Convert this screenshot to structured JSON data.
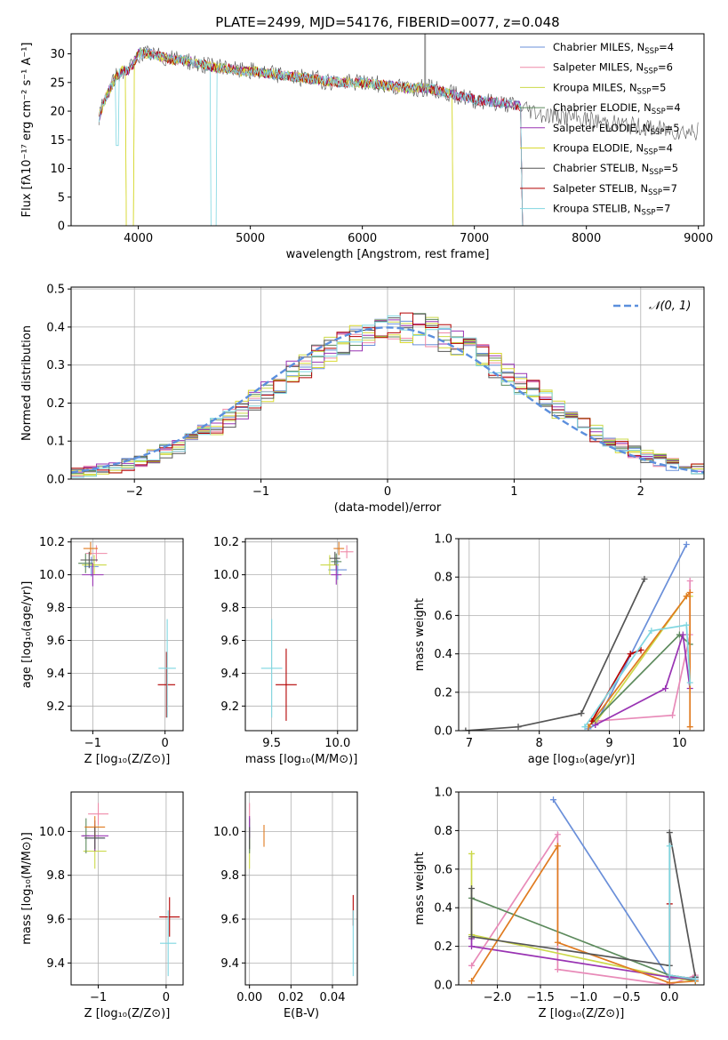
{
  "colors": [
    "#6a8fd9",
    "#ef8aa8",
    "#ccd94a",
    "#5c8a5c",
    "#9933b3",
    "#d9d930",
    "#555555",
    "#b30000",
    "#7fd6e0"
  ],
  "hist_colors": [
    "#6a8fd9",
    "#ef8aa8",
    "#ccd94a",
    "#5c8a5c",
    "#9933b3",
    "#d9d930",
    "#555555",
    "#b30000",
    "#7fd6e0"
  ],
  "errbar_colors": [
    "#6a8fd9",
    "#ef8aa8",
    "#ccd94a",
    "#5c8a5c",
    "#9933b3",
    "#e07b20",
    "#555555",
    "#b30000",
    "#7fd6e0"
  ],
  "weight_colors": [
    "#6a8fd9",
    "#e88ab8",
    "#ccd94a",
    "#5c8a5c",
    "#9933b3",
    "#e07b20",
    "#555555",
    "#b30000",
    "#7fd6e0"
  ],
  "chart_data": [
    {
      "type": "line",
      "title": "PLATE=2499, MJD=54176, FIBERID=0077, z=0.048",
      "xlabel": "wavelength [Angstrom, rest frame]",
      "ylabel": "Flux [fλ10⁻¹⁷ erg cm⁻² s⁻¹ A⁻¹]",
      "xlim": [
        3400,
        9050
      ],
      "ylim": [
        0,
        33.5
      ],
      "xticks": [
        4000,
        5000,
        6000,
        7000,
        8000,
        9000
      ],
      "yticks": [
        0,
        5,
        10,
        15,
        20,
        25,
        30
      ],
      "legend_position": "top-right",
      "spectrum_points": {
        "x": [
          3650,
          3700,
          3750,
          3800,
          3850,
          3900,
          3950,
          4000,
          4100,
          4200,
          4300,
          4400,
          4500,
          4600,
          4700,
          4800,
          4900,
          5000,
          5200,
          5400,
          5600,
          5800,
          6000,
          6200,
          6400,
          6600,
          6800,
          7000,
          7200,
          7400,
          7600,
          7800,
          8000,
          8200,
          8400,
          8600,
          8800,
          9000
        ],
        "y": [
          19,
          22,
          24,
          26,
          27,
          27,
          28,
          30,
          30,
          29.5,
          29,
          29,
          28.5,
          28,
          27.5,
          27.5,
          27,
          27,
          26.5,
          26,
          25.5,
          25,
          25,
          24.5,
          24,
          24,
          23,
          22,
          21.5,
          21,
          19.5,
          19,
          18.5,
          18,
          17.5,
          17,
          16.5,
          16.5
        ]
      },
      "series": [
        {
          "name": "Chabrier MILES, N",
          "sub": "SSP",
          "suffix": "=4"
        },
        {
          "name": "Salpeter MILES, N",
          "sub": "SSP",
          "suffix": "=6"
        },
        {
          "name": "Kroupa MILES, N",
          "sub": "SSP",
          "suffix": "=5"
        },
        {
          "name": "Chabrier ELODIE, N",
          "sub": "SSP",
          "suffix": "=4"
        },
        {
          "name": "Salpeter ELODIE, N",
          "sub": "SSP",
          "suffix": "=5"
        },
        {
          "name": "Kroupa ELODIE, N",
          "sub": "SSP",
          "suffix": "=4"
        },
        {
          "name": "Chabrier STELIB, N",
          "sub": "SSP",
          "suffix": "=5"
        },
        {
          "name": "Salpeter STELIB, N",
          "sub": "SSP",
          "suffix": "=7"
        },
        {
          "name": "Kroupa STELIB, N",
          "sub": "SSP",
          "suffix": "=7"
        }
      ]
    },
    {
      "type": "histogram",
      "xlabel": "(data-model)/error",
      "ylabel": "Normed distribution",
      "xlim": [
        -2.5,
        2.5
      ],
      "ylim": [
        0,
        0.505
      ],
      "xticks": [
        -2,
        -1,
        0,
        1,
        2
      ],
      "yticks": [
        0.0,
        0.1,
        0.2,
        0.3,
        0.4,
        0.5
      ],
      "legend_label": "𝒩(0, 1)",
      "legend_position": "top-right",
      "bin_width": 0.1,
      "bins_start": -2.5,
      "reference_density": "normal(0,1)"
    },
    {
      "type": "scatter",
      "xlabel": "Z [log₁₀(Z/Z⊙)]",
      "ylabel": "age  [log₁₀(age/yr)]",
      "xlim": [
        -1.3,
        0.25
      ],
      "ylim": [
        9.05,
        10.22
      ],
      "xticks": [
        -1,
        0
      ],
      "yticks": [
        9.2,
        9.4,
        9.6,
        9.8,
        10.0,
        10.2
      ],
      "points": [
        {
          "x": -1.02,
          "y": 10.05,
          "xerr": 0.1,
          "yerr": 0.06
        },
        {
          "x": -0.95,
          "y": 10.13,
          "xerr": 0.15,
          "yerr": 0.05
        },
        {
          "x": -0.98,
          "y": 10.06,
          "xerr": 0.17,
          "yerr": 0.06
        },
        {
          "x": -1.1,
          "y": 10.07,
          "xerr": 0.1,
          "yerr": 0.06
        },
        {
          "x": -1.0,
          "y": 10.0,
          "xerr": 0.15,
          "yerr": 0.07
        },
        {
          "x": -1.03,
          "y": 10.16,
          "xerr": 0.1,
          "yerr": 0.04
        },
        {
          "x": -1.05,
          "y": 10.09,
          "xerr": 0.12,
          "yerr": 0.05
        },
        {
          "x": 0.02,
          "y": 9.33,
          "xerr": 0.12,
          "yerr": 0.2
        },
        {
          "x": 0.03,
          "y": 9.43,
          "xerr": 0.12,
          "yerr": 0.3
        }
      ]
    },
    {
      "type": "scatter",
      "xlabel": "mass [log₁₀(M/M⊙)]",
      "ylabel": "",
      "xlim": [
        9.3,
        10.15
      ],
      "ylim": [
        9.05,
        10.22
      ],
      "xticks": [
        9.5,
        10.0
      ],
      "yticks": [
        9.2,
        9.4,
        9.6,
        9.8,
        10.0,
        10.2
      ],
      "points": [
        {
          "x": 10.0,
          "y": 10.03,
          "xerr": 0.07,
          "yerr": 0.06
        },
        {
          "x": 10.07,
          "y": 10.14,
          "xerr": 0.05,
          "yerr": 0.04
        },
        {
          "x": 9.94,
          "y": 10.06,
          "xerr": 0.07,
          "yerr": 0.06
        },
        {
          "x": 9.99,
          "y": 10.08,
          "xerr": 0.04,
          "yerr": 0.05
        },
        {
          "x": 9.99,
          "y": 10.0,
          "xerr": 0.04,
          "yerr": 0.06
        },
        {
          "x": 10.01,
          "y": 10.16,
          "xerr": 0.04,
          "yerr": 0.04
        },
        {
          "x": 9.98,
          "y": 10.1,
          "xerr": 0.04,
          "yerr": 0.04
        },
        {
          "x": 9.61,
          "y": 9.33,
          "xerr": 0.08,
          "yerr": 0.22
        },
        {
          "x": 9.5,
          "y": 9.43,
          "xerr": 0.08,
          "yerr": 0.3
        }
      ]
    },
    {
      "type": "line",
      "xlabel": "age  [log₁₀(age/yr)]",
      "ylabel": "mass weight",
      "xlim": [
        6.85,
        10.35
      ],
      "ylim": [
        0,
        1.0
      ],
      "xticks": [
        7,
        8,
        9,
        10
      ],
      "yticks": [
        0.0,
        0.2,
        0.4,
        0.6,
        0.8,
        1.0
      ],
      "series": [
        {
          "x": [
            8.7,
            8.8,
            10.1
          ],
          "y": [
            0.01,
            0.03,
            0.97
          ]
        },
        {
          "x": [
            8.8,
            9.9,
            10.15,
            10.15
          ],
          "y": [
            0.05,
            0.08,
            0.5,
            0.78
          ]
        },
        {
          "x": [
            8.8,
            10.1,
            10.15
          ],
          "y": [
            0.04,
            0.7,
            0.7
          ]
        },
        {
          "x": [
            8.7,
            10.0,
            10.15
          ],
          "y": [
            0.02,
            0.5,
            0.45
          ]
        },
        {
          "x": [
            8.8,
            9.8,
            10.05,
            10.15
          ],
          "y": [
            0.03,
            0.22,
            0.5,
            0.22
          ]
        },
        {
          "x": [
            8.7,
            10.1,
            10.15,
            10.15
          ],
          "y": [
            0.02,
            0.7,
            0.72,
            0.02
          ]
        },
        {
          "x": [
            6.95,
            7.7,
            8.6,
            9.5
          ],
          "y": [
            0.0,
            0.02,
            0.09,
            0.79
          ]
        },
        {
          "x": [
            8.75,
            9.3,
            9.45
          ],
          "y": [
            0.05,
            0.4,
            0.42
          ]
        },
        {
          "x": [
            8.65,
            9.6,
            10.1,
            10.15
          ],
          "y": [
            0.02,
            0.52,
            0.55,
            0.25
          ]
        }
      ]
    },
    {
      "type": "scatter",
      "xlabel": "Z [log₁₀(Z/Z⊙)]",
      "ylabel": "mass [log₁₀(M/M⊙)]",
      "xlim": [
        -1.4,
        0.25
      ],
      "ylim": [
        9.3,
        10.18
      ],
      "xticks": [
        -1,
        0
      ],
      "yticks": [
        9.4,
        9.6,
        9.8,
        10.0
      ],
      "points": [
        {
          "x": -1.05,
          "y": 9.97,
          "xerr": 0.15,
          "yerr": 0.06
        },
        {
          "x": -1.0,
          "y": 10.08,
          "xerr": 0.15,
          "yerr": 0.05
        },
        {
          "x": -1.05,
          "y": 9.91,
          "xerr": 0.17,
          "yerr": 0.08
        },
        {
          "x": -1.18,
          "y": 9.98,
          "xerr": 0.05,
          "yerr": 0.08
        },
        {
          "x": -1.05,
          "y": 9.98,
          "xerr": 0.2,
          "yerr": 0.07
        },
        {
          "x": -1.05,
          "y": 10.02,
          "xerr": 0.15,
          "yerr": 0.05
        },
        {
          "x": -1.05,
          "y": 9.97,
          "xerr": 0.15,
          "yerr": 0.05
        },
        {
          "x": 0.05,
          "y": 9.61,
          "xerr": 0.15,
          "yerr": 0.09
        },
        {
          "x": 0.03,
          "y": 9.49,
          "xerr": 0.12,
          "yerr": 0.15
        }
      ]
    },
    {
      "type": "scatter",
      "xlabel": "E(B-V)",
      "ylabel": "",
      "xlim": [
        -0.002,
        0.052
      ],
      "ylim": [
        9.3,
        10.18
      ],
      "xticks": [
        0.0,
        0.02,
        0.04
      ],
      "yticks": [
        9.4,
        9.6,
        9.8,
        10.0
      ],
      "points": [
        {
          "x": 0.0,
          "y": 9.97,
          "xerr": 0.0,
          "yerr": 0.06
        },
        {
          "x": 0.0,
          "y": 10.08,
          "xerr": 0.0,
          "yerr": 0.05
        },
        {
          "x": 0.0,
          "y": 9.91,
          "xerr": 0.0,
          "yerr": 0.08
        },
        {
          "x": 0.0,
          "y": 9.98,
          "xerr": 0.0,
          "yerr": 0.08
        },
        {
          "x": 0.0,
          "y": 10.02,
          "xerr": 0.0,
          "yerr": 0.05
        },
        {
          "x": 0.007,
          "y": 9.98,
          "xerr": 0.0,
          "yerr": 0.05
        },
        {
          "x": 0.0,
          "y": 9.97,
          "xerr": 0.0,
          "yerr": 0.05
        },
        {
          "x": 0.05,
          "y": 9.64,
          "xerr": 0.0,
          "yerr": 0.07
        },
        {
          "x": 0.05,
          "y": 9.49,
          "xerr": 0.0,
          "yerr": 0.15
        }
      ]
    },
    {
      "type": "line",
      "xlabel": "Z [log₁₀(Z/Z⊙)]",
      "ylabel": "mass weight",
      "xlim": [
        -2.45,
        0.4
      ],
      "ylim": [
        0,
        1.0
      ],
      "xticks": [
        -2.0,
        -1.5,
        -1.0,
        -0.5,
        0.0
      ],
      "yticks": [
        0.0,
        0.2,
        0.4,
        0.6,
        0.8,
        1.0
      ],
      "series": [
        {
          "x": [
            -1.35,
            0.0,
            0.3
          ],
          "y": [
            0.96,
            0.03,
            0.04
          ]
        },
        {
          "x": [
            -2.3,
            -1.3,
            -1.3,
            0.0,
            0.3
          ],
          "y": [
            0.1,
            0.78,
            0.08,
            0.0,
            0.05
          ]
        },
        {
          "x": [
            -2.3,
            -2.3,
            0.0,
            0.3
          ],
          "y": [
            0.68,
            0.26,
            0.04,
            0.02
          ]
        },
        {
          "x": [
            -2.3,
            0.0,
            0.3
          ],
          "y": [
            0.45,
            0.05,
            0.02
          ]
        },
        {
          "x": [
            -2.3,
            -2.3,
            0.0,
            0.3
          ],
          "y": [
            0.24,
            0.2,
            0.04,
            0.03
          ]
        },
        {
          "x": [
            -2.3,
            -1.3,
            -1.3,
            0.0,
            0.3
          ],
          "y": [
            0.02,
            0.72,
            0.22,
            0.01,
            0.02
          ]
        },
        {
          "x": [
            -2.3,
            -2.3,
            0.0,
            0.0,
            0.3
          ],
          "y": [
            0.5,
            0.25,
            0.1,
            0.79,
            0.04
          ]
        },
        {
          "x": [
            0.0,
            0.0,
            0.3
          ],
          "y": [
            0.42,
            0.05,
            0.03
          ]
        },
        {
          "x": [
            0.0,
            0.0,
            0.3
          ],
          "y": [
            0.72,
            0.05,
            0.03
          ]
        }
      ]
    }
  ]
}
